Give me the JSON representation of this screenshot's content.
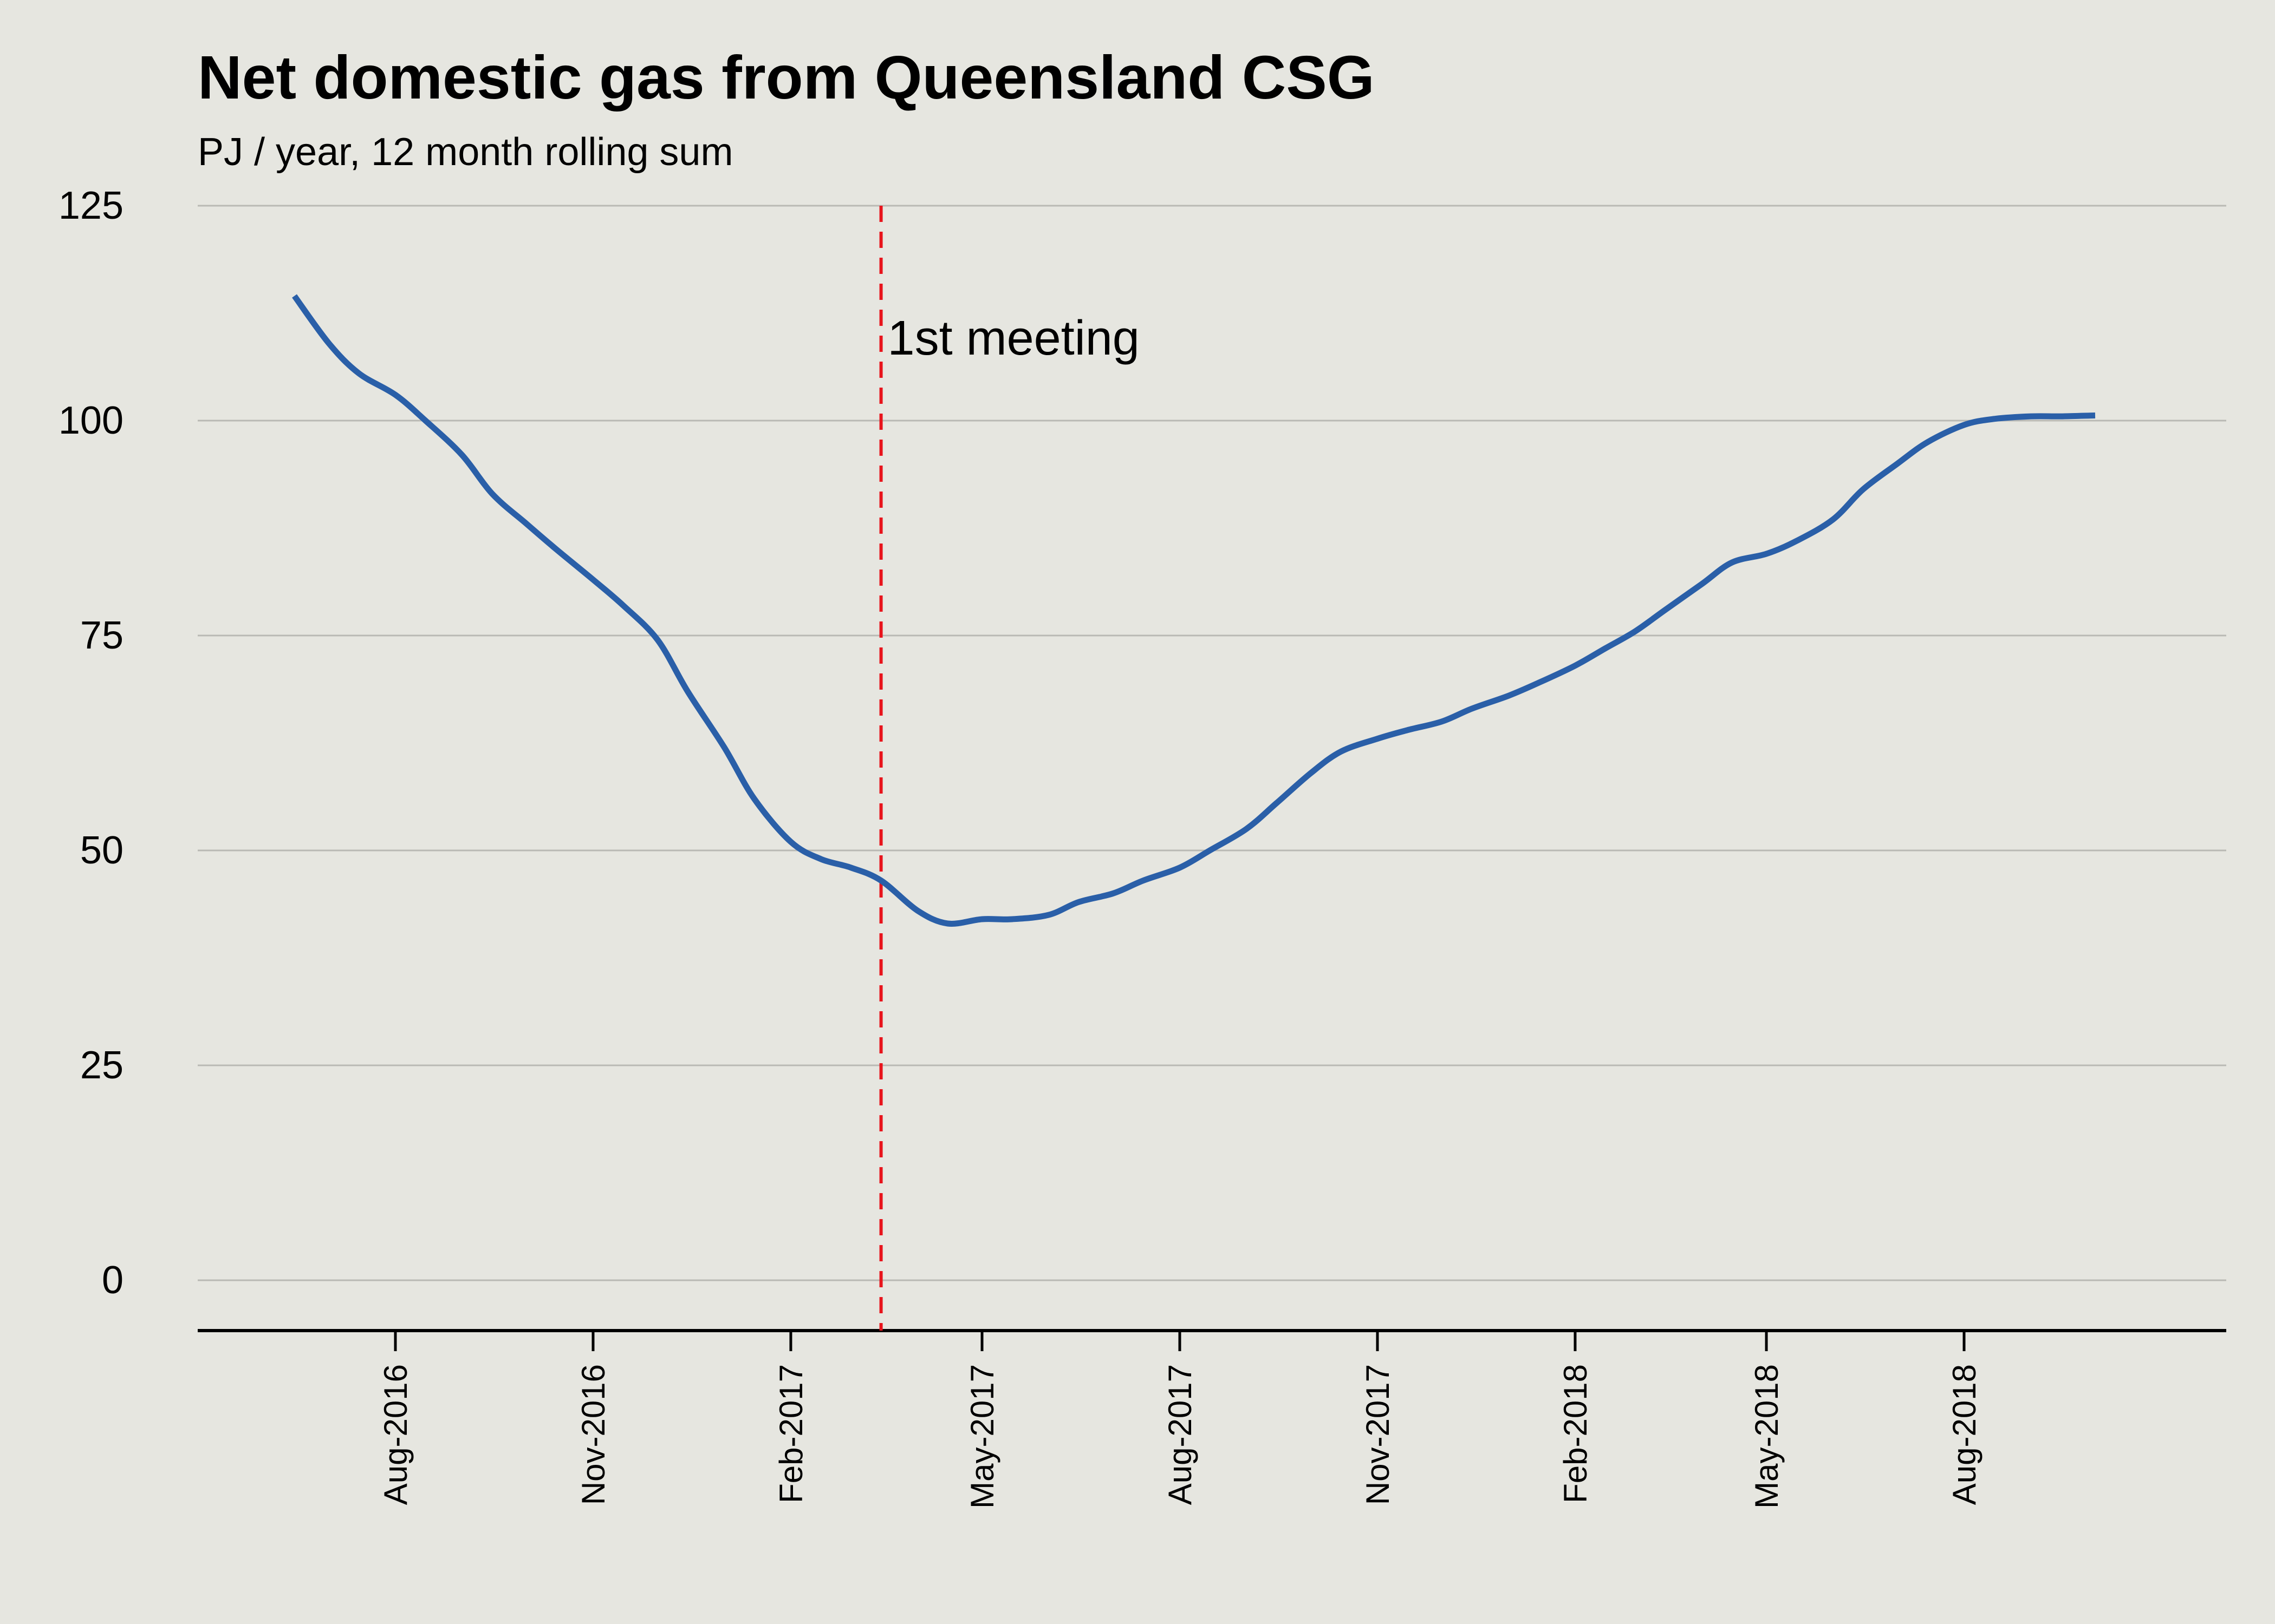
{
  "chart_data": {
    "type": "line",
    "title": "Net domestic gas from Queensland CSG",
    "subtitle": "PJ / year, 12 month rolling sum",
    "xlabel": "",
    "ylabel": "",
    "ylim": [
      0,
      125
    ],
    "y_ticks": [
      0,
      25,
      50,
      75,
      100,
      125
    ],
    "x_ticks": [
      "Aug-2016",
      "Nov-2016",
      "Feb-2017",
      "May-2017",
      "Aug-2017",
      "Nov-2017",
      "Feb-2018",
      "May-2018",
      "Aug-2018"
    ],
    "grid": "horizontal",
    "line_color": "#2a5fa8",
    "annotation": {
      "label": "1st meeting",
      "x": "2017-03-15",
      "color": "#e8141c",
      "style": "dashed"
    },
    "series": [
      {
        "x": [
          "2016-06-15",
          "2016-07-01",
          "2016-07-15",
          "2016-08-01",
          "2016-08-15",
          "2016-09-01",
          "2016-09-15",
          "2016-10-01",
          "2016-10-15",
          "2016-11-01",
          "2016-11-15",
          "2016-12-01",
          "2016-12-15",
          "2017-01-01",
          "2017-01-15",
          "2017-02-01",
          "2017-02-15",
          "2017-03-01",
          "2017-03-15",
          "2017-04-01",
          "2017-04-15",
          "2017-05-01",
          "2017-05-15",
          "2017-06-01",
          "2017-06-15",
          "2017-07-01",
          "2017-07-15",
          "2017-08-01",
          "2017-08-15",
          "2017-09-01",
          "2017-09-15",
          "2017-10-01",
          "2017-10-15",
          "2017-11-01",
          "2017-11-15",
          "2017-12-01",
          "2017-12-15",
          "2018-01-01",
          "2018-01-15",
          "2018-02-01",
          "2018-02-15",
          "2018-03-01",
          "2018-03-15",
          "2018-04-01",
          "2018-04-15",
          "2018-05-01",
          "2018-05-15",
          "2018-06-01",
          "2018-06-15",
          "2018-07-01",
          "2018-07-15",
          "2018-08-01",
          "2018-08-15",
          "2018-09-01",
          "2018-09-15",
          "2018-10-01"
        ],
        "values": [
          114.5,
          109,
          105.5,
          103,
          100,
          96,
          91.5,
          88,
          85,
          81.5,
          78.5,
          74.5,
          68.5,
          62,
          56,
          51,
          49,
          48,
          46.5,
          43,
          41.5,
          42,
          42,
          42.5,
          44,
          45,
          46.5,
          48,
          50,
          52.5,
          55.5,
          59,
          61.5,
          63,
          64,
          65,
          66.5,
          68,
          69.5,
          71.5,
          73.5,
          75.5,
          78,
          81,
          83.5,
          84.5,
          86,
          88.5,
          92,
          95,
          97.5,
          99.5,
          100.2,
          100.5,
          100.5,
          100.6
        ]
      }
    ]
  }
}
